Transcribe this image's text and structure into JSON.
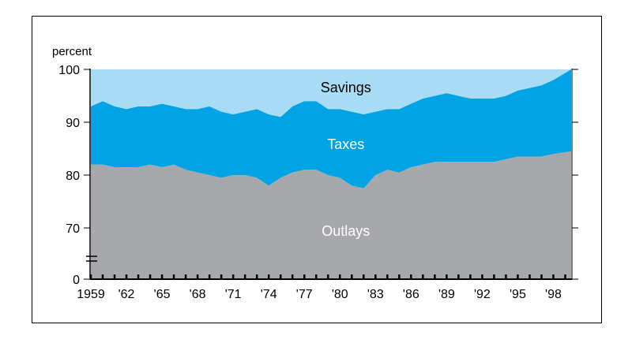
{
  "chart_data": {
    "type": "area",
    "stacked": true,
    "ylabel": "percent",
    "y_axis_break": true,
    "y_ticks": [
      0,
      70,
      80,
      90,
      100
    ],
    "x_tick_labels": [
      "1959",
      "'62",
      "'65",
      "'68",
      "'71",
      "'74",
      "'77",
      "'80",
      "'83",
      "'86",
      "'89",
      "'92",
      "'95",
      "'98"
    ],
    "x_label_years": [
      1959,
      1962,
      1965,
      1968,
      1971,
      1974,
      1977,
      1980,
      1983,
      1986,
      1989,
      1992,
      1995,
      1998
    ],
    "xlim": [
      1959,
      1999.5
    ],
    "ylim": [
      0,
      100
    ],
    "x": [
      1959,
      1960,
      1961,
      1962,
      1963,
      1964,
      1965,
      1966,
      1967,
      1968,
      1969,
      1970,
      1971,
      1972,
      1973,
      1974,
      1975,
      1976,
      1977,
      1978,
      1979,
      1980,
      1981,
      1982,
      1983,
      1984,
      1985,
      1986,
      1987,
      1988,
      1989,
      1990,
      1991,
      1992,
      1993,
      1994,
      1995,
      1996,
      1997,
      1998,
      1999.5
    ],
    "series": [
      {
        "name": "Outlays",
        "values": [
          82,
          82,
          81.5,
          81.5,
          81.5,
          82,
          81.5,
          82,
          81,
          80.5,
          80,
          79.5,
          80,
          80,
          79.5,
          78,
          79.5,
          80.5,
          81,
          81,
          80,
          79.5,
          78,
          77.5,
          80,
          81,
          80.5,
          81.5,
          82,
          82.5,
          82.5,
          82.5,
          82.5,
          82.5,
          82.5,
          83,
          83.5,
          83.5,
          83.5,
          84,
          84.5
        ],
        "color": "#a6a8ab"
      },
      {
        "name": "Taxes",
        "values": [
          11,
          12,
          11.5,
          11,
          11.5,
          11,
          12,
          11,
          11.5,
          12,
          13,
          12.5,
          11.5,
          12,
          13,
          13.5,
          11.5,
          12.5,
          13,
          13,
          12.5,
          13,
          14,
          14,
          12,
          11.5,
          12,
          12,
          12.5,
          12.5,
          13,
          12.5,
          12,
          12,
          12,
          12,
          12.5,
          13,
          13.5,
          14,
          15.5
        ],
        "color": "#00a4e4"
      },
      {
        "name": "Savings",
        "values": [
          7,
          6,
          7,
          7.5,
          7,
          7,
          6.5,
          7,
          7.5,
          7.5,
          7,
          8,
          8.5,
          8,
          7.5,
          8.5,
          9,
          7,
          6,
          6,
          7.5,
          7.5,
          8,
          8.5,
          8,
          7.5,
          7.5,
          6.5,
          5.5,
          5,
          4.5,
          5,
          5.5,
          5.5,
          5.5,
          5,
          4,
          3.5,
          3,
          2,
          0
        ],
        "color": "#a8dcf4"
      }
    ],
    "labels": {
      "savings": "Savings",
      "taxes": "Taxes",
      "outlays": "Outlays"
    },
    "grid": false,
    "legend": "none"
  }
}
